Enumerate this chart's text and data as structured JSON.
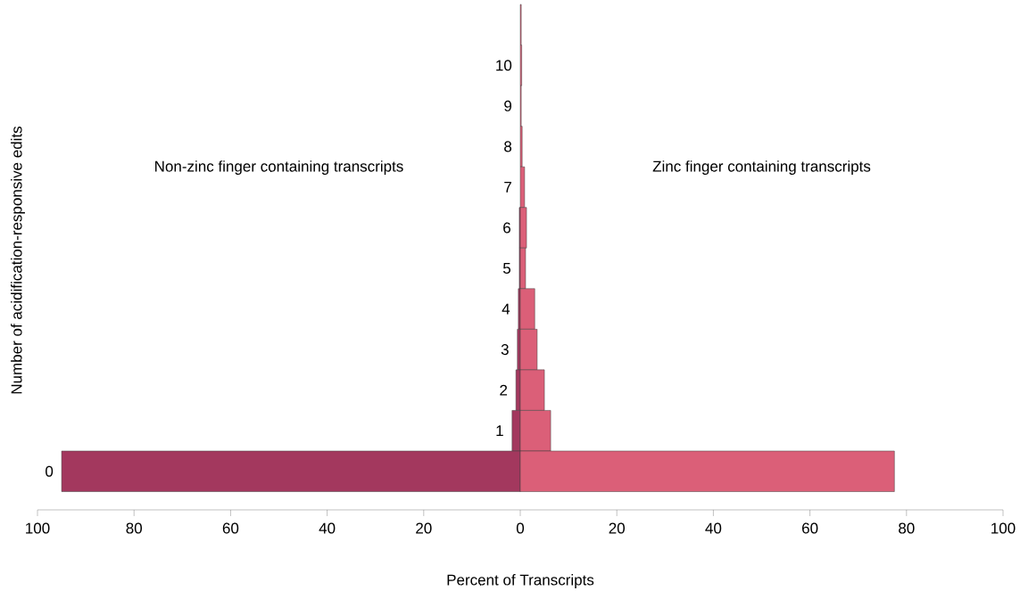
{
  "chart_data": {
    "type": "bar",
    "orientation": "horizontal",
    "xlabel": "Percent of Transcripts",
    "ylabel": "Number of acidification-responsive edits",
    "categories": [
      null,
      "10",
      "9",
      "8",
      "7",
      "6",
      "5",
      "4",
      "3",
      "2",
      "1",
      "0"
    ],
    "series": [
      {
        "color": "#a3385e",
        "values": [
          null,
          null,
          null,
          null,
          null,
          -0.2,
          -0.2,
          -0.4,
          -0.6,
          -0.9,
          -1.7,
          -95
        ]
      },
      {
        "color": "#db5f78",
        "values": [
          0.2,
          0.3,
          0.2,
          0.4,
          0.9,
          1.3,
          1.1,
          3.0,
          3.5,
          5.0,
          6.3,
          77.5
        ]
      }
    ],
    "xlim": [
      -100,
      100
    ],
    "xticks": [
      {
        "value": -100,
        "label": "100"
      },
      {
        "value": -80,
        "label": "80"
      },
      {
        "value": -60,
        "label": "60"
      },
      {
        "value": -40,
        "label": "40"
      },
      {
        "value": -20,
        "label": "20"
      },
      0,
      20,
      40,
      60,
      80,
      100
    ],
    "annotations": [
      "Non-zinc finger containing transcripts",
      "Zinc finger containing transcripts"
    ],
    "legend": false,
    "grid": false
  }
}
